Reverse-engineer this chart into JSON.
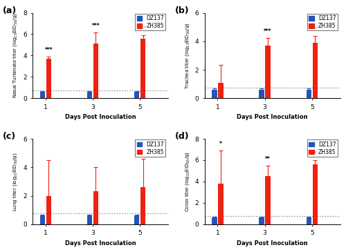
{
  "panels": [
    {
      "label": "(a)",
      "ylabel": "Nasal Turbinate titer (log$_{10}$EID$_{50}$/g)",
      "ylim": [
        0,
        8
      ],
      "yticks": [
        0,
        2,
        4,
        6,
        8
      ],
      "dz137_vals": [
        0.6,
        0.6,
        0.6
      ],
      "zh385_vals": [
        3.7,
        5.1,
        5.6
      ],
      "dz137_err": [
        0.08,
        0.08,
        0.08
      ],
      "zh385_err": [
        0.18,
        1.05,
        0.32
      ],
      "significance": [
        "***",
        "***",
        "***"
      ],
      "detection_limit": 0.75
    },
    {
      "label": "(b)",
      "ylabel": "Trachea titer (log$_{10}$EID$_{50}$/g)",
      "ylim": [
        0,
        6
      ],
      "yticks": [
        0,
        2,
        4,
        6
      ],
      "dz137_vals": [
        0.6,
        0.6,
        0.6
      ],
      "zh385_vals": [
        1.1,
        3.7,
        3.9
      ],
      "dz137_err": [
        0.08,
        0.08,
        0.08
      ],
      "zh385_err": [
        1.25,
        0.55,
        0.5
      ],
      "significance": [
        null,
        "***",
        "***"
      ],
      "detection_limit": 0.75
    },
    {
      "label": "(c)",
      "ylabel": "Lung titer (log$_{10}$EID$_{50}$/g)",
      "ylim": [
        0,
        6
      ],
      "yticks": [
        0,
        2,
        4,
        6
      ],
      "dz137_vals": [
        0.6,
        0.6,
        0.6
      ],
      "zh385_vals": [
        2.0,
        2.3,
        2.6
      ],
      "dz137_err": [
        0.08,
        0.08,
        0.08
      ],
      "zh385_err": [
        2.5,
        1.7,
        2.0
      ],
      "significance": [
        null,
        null,
        null
      ],
      "detection_limit": 0.75
    },
    {
      "label": "(d)",
      "ylabel": "Colon titer (log$_{10}$EID$_{50}$/g)",
      "ylim": [
        0,
        8
      ],
      "yticks": [
        0,
        2,
        4,
        6,
        8
      ],
      "dz137_vals": [
        0.6,
        0.6,
        0.6
      ],
      "zh385_vals": [
        3.8,
        4.5,
        5.6
      ],
      "dz137_err": [
        0.08,
        0.08,
        0.08
      ],
      "zh385_err": [
        3.1,
        1.0,
        0.4
      ],
      "significance": [
        "*",
        "**",
        "**"
      ],
      "detection_limit": 0.75
    }
  ],
  "blue_color": "#2255bb",
  "red_color": "#ee2211",
  "bar_width": 0.22,
  "xlabel": "Days Post Inoculation",
  "legend_labels": [
    "DZ137",
    "ZH385"
  ],
  "xtick_labels": [
    "1",
    "3",
    "5"
  ],
  "xtick_positions": [
    1,
    3,
    5
  ]
}
